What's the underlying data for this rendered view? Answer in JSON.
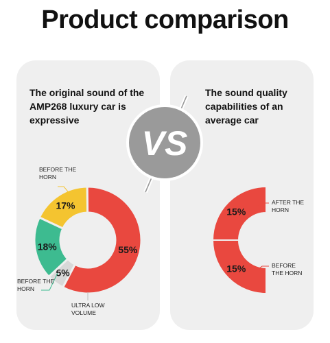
{
  "page": {
    "title": "Product comparison"
  },
  "left_card": {
    "heading": "The original sound of the AMP268 luxury car is expressive"
  },
  "right_card": {
    "heading": "The sound quality capabilities of an average car"
  },
  "vs_badge": {
    "text": "VS"
  },
  "chart_data": [
    {
      "type": "pie",
      "variant": "donut",
      "slices": [
        {
          "label": "BEFORE THE HORN",
          "value": 17,
          "display": "17%",
          "color": "#f4c430"
        },
        {
          "label": "",
          "value": 55,
          "display": "55%",
          "color": "#e9483f"
        },
        {
          "label": "ULTRA LOW VOLUME",
          "value": 5,
          "display": "5%",
          "color": "#d8d8d8"
        },
        {
          "label": "BEFORE THE HORN",
          "value": 18,
          "display": "18%",
          "color": "#3dbb90"
        }
      ]
    },
    {
      "type": "pie",
      "variant": "half-donut",
      "slices": [
        {
          "label": "AFTER THE HORN",
          "value": 15,
          "display": "15%",
          "color": "#e9483f"
        },
        {
          "label": "BEFORE THE HORN",
          "value": 15,
          "display": "15%",
          "color": "#e9483f"
        }
      ]
    }
  ]
}
